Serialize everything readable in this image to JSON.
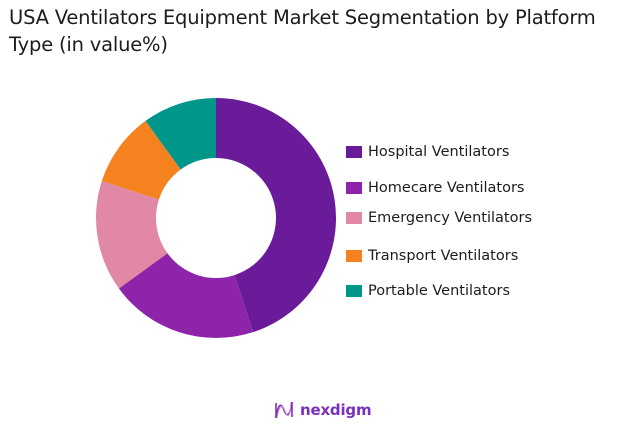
{
  "title": "USA Ventilators Equipment Market Segmentation by Platform Type (in value%)",
  "chart_data": {
    "type": "pie",
    "variant": "donut",
    "title": "USA Ventilators Equipment Market Segmentation by Platform Type (in value%)",
    "categories": [
      "Hospital Ventilators",
      "Homecare Ventilators",
      "Emergency Ventilators",
      "Transport Ventilators",
      "Portable Ventilators"
    ],
    "values": [
      45,
      20,
      15,
      10,
      10
    ],
    "colors": [
      "#6a1b9a",
      "#8e24aa",
      "#e088a4",
      "#f5821f",
      "#00968a"
    ],
    "start_angle_deg": 0,
    "direction": "clockwise",
    "legend_position": "right"
  },
  "legend": {
    "items": [
      {
        "label": "Hospital Ventilators",
        "color": "#6a1b9a"
      },
      {
        "label": "Homecare Ventilators",
        "color": "#8e24aa"
      },
      {
        "label": "Emergency Ventilators",
        "color": "#e088a4"
      },
      {
        "label": "Transport Ventilators",
        "color": "#f5821f"
      },
      {
        "label": "Portable Ventilators",
        "color": "#00968a"
      }
    ]
  },
  "footer": {
    "logo_icon": "nexdigm-wave-icon",
    "logo_text": "nexdigm"
  }
}
